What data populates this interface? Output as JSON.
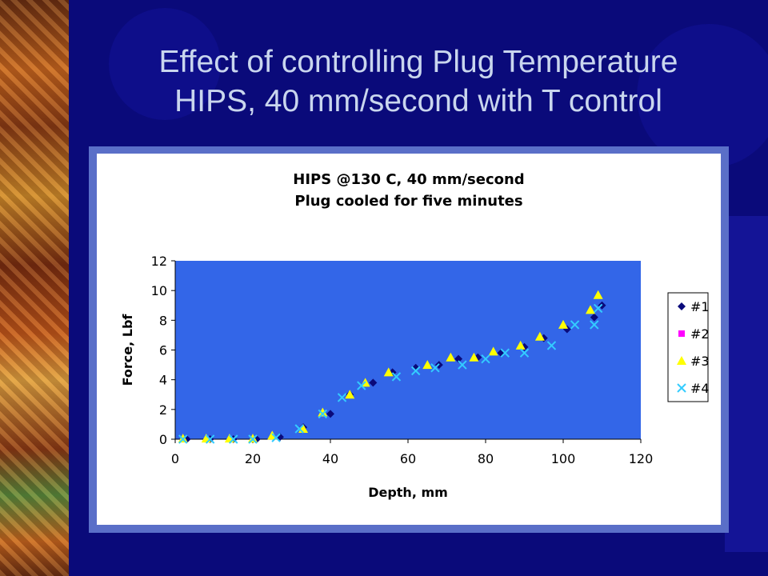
{
  "slide": {
    "title_line1": "Effect of controlling Plug Temperature",
    "title_line2": "HIPS, 40 mm/second with T control",
    "bg_color": "#0a0a7a",
    "title_color": "#c9d6ee"
  },
  "chart_data": {
    "type": "scatter",
    "title_lines": [
      "HIPS @130 C, 40 mm/second",
      "Plug cooled for five minutes"
    ],
    "xlabel": "Depth, mm",
    "ylabel": "Force, Lbf",
    "xlim": [
      0,
      120
    ],
    "ylim": [
      0,
      12
    ],
    "xticks": [
      0,
      20,
      40,
      60,
      80,
      100,
      120
    ],
    "yticks": [
      0,
      2,
      4,
      6,
      8,
      10,
      12
    ],
    "plot_bg": "#3366e8",
    "grid": false,
    "legend_position": "right",
    "series": [
      {
        "name": "#1",
        "marker": "diamond",
        "color": "#0a0a7a",
        "points": [
          [
            3,
            0
          ],
          [
            9,
            0
          ],
          [
            15,
            0
          ],
          [
            21,
            0
          ],
          [
            27,
            0.15
          ],
          [
            33,
            0.8
          ],
          [
            40,
            1.7
          ],
          [
            45,
            3.0
          ],
          [
            51,
            3.8
          ],
          [
            56,
            4.5
          ],
          [
            62,
            4.8
          ],
          [
            68,
            5.0
          ],
          [
            73,
            5.4
          ],
          [
            78,
            5.5
          ],
          [
            84,
            5.8
          ],
          [
            90,
            6.2
          ],
          [
            95,
            6.8
          ],
          [
            101,
            7.4
          ],
          [
            108,
            8.2
          ],
          [
            110,
            9.0
          ]
        ]
      },
      {
        "name": "#2",
        "marker": "square",
        "color": "#ff00ff",
        "points": []
      },
      {
        "name": "#3",
        "marker": "triangle",
        "color": "#ffff00",
        "points": [
          [
            2,
            0.05
          ],
          [
            8,
            0.05
          ],
          [
            14,
            0.05
          ],
          [
            20,
            0.05
          ],
          [
            25,
            0.25
          ],
          [
            33,
            0.7
          ],
          [
            38,
            1.8
          ],
          [
            45,
            3.0
          ],
          [
            49,
            3.8
          ],
          [
            55,
            4.5
          ],
          [
            65,
            5.0
          ],
          [
            71,
            5.5
          ],
          [
            77,
            5.5
          ],
          [
            82,
            5.9
          ],
          [
            89,
            6.3
          ],
          [
            94,
            6.9
          ],
          [
            100,
            7.7
          ],
          [
            107,
            8.7
          ],
          [
            109,
            9.7
          ]
        ]
      },
      {
        "name": "#4",
        "marker": "x",
        "color": "#33ccff",
        "points": [
          [
            2,
            0
          ],
          [
            9,
            0
          ],
          [
            15,
            0
          ],
          [
            20,
            0
          ],
          [
            26,
            0.1
          ],
          [
            32,
            0.7
          ],
          [
            38,
            1.7
          ],
          [
            43,
            2.8
          ],
          [
            48,
            3.6
          ],
          [
            57,
            4.2
          ],
          [
            62,
            4.6
          ],
          [
            67,
            4.8
          ],
          [
            74,
            5.0
          ],
          [
            80,
            5.4
          ],
          [
            85,
            5.8
          ],
          [
            90,
            5.8
          ],
          [
            97,
            6.3
          ],
          [
            103,
            7.7
          ],
          [
            108,
            7.7
          ],
          [
            109,
            8.8
          ]
        ]
      }
    ]
  }
}
